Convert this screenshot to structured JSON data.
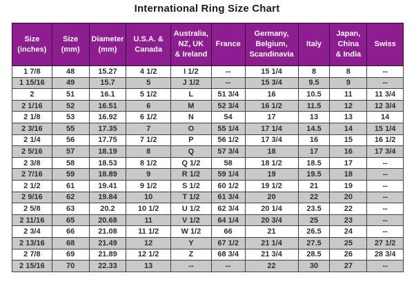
{
  "title": "International Ring Size Chart",
  "colors": {
    "header_bg": "#8d1d90",
    "header_text": "#ffffff",
    "row_alt_bg": "#c9c9c9",
    "border": "#3f3f3f",
    "body_text": "#2e2e2e"
  },
  "layout": {
    "col_widths_pct": [
      10.2,
      9.5,
      9.5,
      11.4,
      10.4,
      8.6,
      13.6,
      8.1,
      9.5,
      9.3
    ]
  },
  "chart_data": {
    "type": "table",
    "title": "International Ring Size Chart",
    "columns": [
      "Size\n(inches)",
      "Size\n(mm)",
      "Diameter\n(mm)",
      "U.S.A. &\nCanada",
      "Australia,\nNZ, UK\n& Ireland",
      "France",
      "Germany,\nBelgium,\nScandinavia",
      "Italy",
      "Japan,\nChina\n& India",
      "Swiss"
    ],
    "rows": [
      [
        "1 7/8",
        "48",
        "15.27",
        "4 1/2",
        "I 1/2",
        "--",
        "15 1/4",
        "8",
        "8",
        "--"
      ],
      [
        "1 15/16",
        "49",
        "15.7",
        "5",
        "J 1/2",
        "--",
        "15 3/4",
        "9.5",
        "9",
        "--"
      ],
      [
        "2",
        "51",
        "16.1",
        "5 1/2",
        "L",
        "51 3/4",
        "16",
        "10.5",
        "11",
        "11 3/4"
      ],
      [
        "2 1/16",
        "52",
        "16.51",
        "6",
        "M",
        "52 3/4",
        "16 1/2",
        "11.5",
        "12",
        "12 3/4"
      ],
      [
        "2 1/8",
        "53",
        "16.92",
        "6 1/2",
        "N",
        "54",
        "17",
        "13",
        "13",
        "14"
      ],
      [
        "2 3/16",
        "55",
        "17.35",
        "7",
        "O",
        "55 1/4",
        "17 1/4",
        "14.5",
        "14",
        "15 1/4"
      ],
      [
        "2 1/4",
        "56",
        "17.75",
        "7 1/2",
        "P",
        "56 1/2",
        "17 3/4",
        "16",
        "15",
        "16 1/2"
      ],
      [
        "2 5/16",
        "57",
        "18.19",
        "8",
        "Q",
        "57 3/4",
        "18",
        "17",
        "16",
        "17 3/4"
      ],
      [
        "2 3/8",
        "58",
        "18.53",
        "8 1/2",
        "Q 1/2",
        "58",
        "18 1/2",
        "18.5",
        "17",
        "--"
      ],
      [
        "2 7/16",
        "59",
        "18.89",
        "9",
        "R 1/2",
        "59 1/4",
        "19",
        "19.5",
        "18",
        "--"
      ],
      [
        "2 1/2",
        "61",
        "19.41",
        "9 1/2",
        "S 1/2",
        "60 1/2",
        "19 1/2",
        "21",
        "19",
        "--"
      ],
      [
        "2 9/16",
        "62",
        "19.84",
        "10",
        "T 1/2",
        "61 3/4",
        "20",
        "22",
        "20",
        "--"
      ],
      [
        "2 5/8",
        "63",
        "20.2",
        "10 1/2",
        "U 1/2",
        "62 3/4",
        "20 1/4",
        "23.5",
        "22",
        "--"
      ],
      [
        "2 11/16",
        "65",
        "20.68",
        "11",
        "V 1/2",
        "64 1/4",
        "20 3/4",
        "25",
        "23",
        "--"
      ],
      [
        "2 3/4",
        "66",
        "21.08",
        "11 1/2",
        "W 1/2",
        "66",
        "21",
        "26.5",
        "24",
        "--"
      ],
      [
        "2 13/16",
        "68",
        "21.49",
        "12",
        "Y",
        "67 1/2",
        "21 1/4",
        "27.5",
        "25",
        "27 1/2"
      ],
      [
        "2 7/8",
        "69",
        "21.89",
        "12 1/2",
        "Z",
        "68 3/4",
        "21 3/4",
        "28.5",
        "26",
        "28 3/4"
      ],
      [
        "2 15/16",
        "70",
        "22.33",
        "13",
        "--",
        "--",
        "22",
        "30",
        "27",
        "--"
      ]
    ]
  }
}
